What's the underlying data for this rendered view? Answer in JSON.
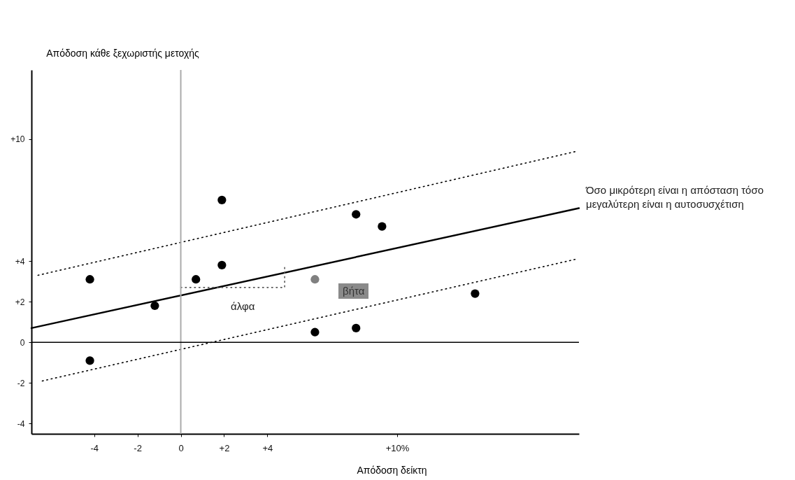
{
  "chart_data": {
    "type": "scatter",
    "xlabel": "Απόδοση δείκτη",
    "ylabel": "Απόδοση κάθε ξεχωριστής μετοχής",
    "xlim": [
      -6.9,
      18.4
    ],
    "ylim": [
      -4.5,
      13.4
    ],
    "xticks": [
      {
        "value": -4,
        "label": "-4"
      },
      -2,
      0,
      {
        "value": 2,
        "label": "+2"
      },
      {
        "value": 4,
        "label": "+4"
      },
      {
        "value": 10,
        "label": "+10%"
      }
    ],
    "yticks": [
      {
        "value": 10,
        "label": "+10"
      },
      {
        "value": 4,
        "label": "+4"
      },
      {
        "value": 2,
        "label": "+2"
      },
      0,
      -2,
      -4
    ],
    "grid": false,
    "series": [
      {
        "marker": "circle",
        "colors": [
          "#000000",
          "#000000",
          "#000000",
          "#000000",
          "#000000",
          "#808080",
          "#000000",
          "#000000",
          "#000000",
          "#000000",
          "#000000",
          "#000000"
        ],
        "x": [
          -4.2,
          -1.2,
          0.7,
          1.9,
          1.9,
          6.2,
          6.2,
          8.1,
          8.1,
          9.3,
          13.6,
          -4.2
        ],
        "values": [
          3.1,
          1.8,
          3.1,
          7.0,
          3.8,
          3.1,
          0.5,
          6.3,
          0.7,
          5.7,
          2.4,
          -0.9
        ]
      },
      {
        "type": "line",
        "color": "#000000",
        "line_style": "solid",
        "x": [
          -6.9,
          18.4
        ],
        "values": [
          0.7,
          6.6
        ]
      },
      {
        "type": "line",
        "color": "#000000",
        "line_style": "dotted",
        "x": [
          -6.6,
          18.3
        ],
        "values": [
          3.3,
          9.4
        ]
      },
      {
        "type": "line",
        "color": "#000000",
        "line_style": "dotted",
        "x": [
          -6.4,
          18.3
        ],
        "values": [
          -1.9,
          4.1
        ]
      },
      {
        "type": "line",
        "color": "#555555",
        "line_style": "dotted",
        "x": [
          0,
          4.8,
          4.8
        ],
        "values": [
          2.7,
          2.7,
          3.7
        ]
      }
    ],
    "ref_lines": [
      {
        "axis": "x",
        "value": 0,
        "color": "#aaaaaa"
      },
      {
        "axis": "y",
        "value": 0,
        "color": "#000000"
      }
    ],
    "annotations": [
      "άλφα",
      "βήτα",
      "Όσο μικρότερη είναι η απόσταση τόσο μεγαλύτερη είναι η αυτοσυσχέτιση"
    ]
  }
}
